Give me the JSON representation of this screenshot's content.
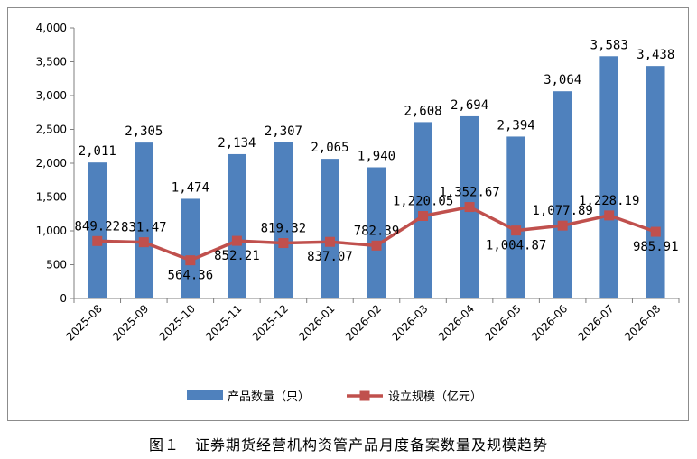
{
  "caption": "图１　证券期货经营机构资管产品月度备案数量及规模趋势",
  "colors": {
    "bar": "#4f81bd",
    "line": "#c0504d",
    "axis": "#7f7f7f",
    "grid": "#d9d9d9"
  },
  "chart_data": {
    "type": "bar",
    "title": "",
    "xlabel": "",
    "ylabel": "",
    "ylim": [
      0,
      4000
    ],
    "yticks": [
      0,
      500,
      1000,
      1500,
      2000,
      2500,
      3000,
      3500,
      4000
    ],
    "ytick_labels": [
      "0",
      "500",
      "1,000",
      "1,500",
      "2,000",
      "2,500",
      "3,000",
      "3,500",
      "4,000"
    ],
    "grid": false,
    "legend_position": "bottom",
    "categories": [
      "2025-08",
      "2025-09",
      "2025-10",
      "2025-11",
      "2025-12",
      "2026-01",
      "2026-02",
      "2026-03",
      "2026-04",
      "2026-05",
      "2026-06",
      "2026-07",
      "2026-08"
    ],
    "series": [
      {
        "name": "产品数量（只）",
        "kind": "bar",
        "values": [
          2011,
          2305,
          1474,
          2134,
          2307,
          2065,
          1940,
          2608,
          2694,
          2394,
          3064,
          3583,
          3438
        ],
        "labels": [
          "2,011",
          "2,305",
          "1,474",
          "2,134",
          "2,307",
          "2,065",
          "1,940",
          "2,608",
          "2,694",
          "2,394",
          "3,064",
          "3,583",
          "3,438"
        ]
      },
      {
        "name": "设立规模（亿元）",
        "kind": "line",
        "values": [
          849.22,
          831.47,
          564.36,
          852.21,
          819.32,
          837.07,
          782.39,
          1220.05,
          1352.67,
          1004.87,
          1077.89,
          1228.19,
          985.91
        ],
        "labels": [
          "849.22",
          "831.47",
          "564.36",
          "852.21",
          "819.32",
          "837.07",
          "782.39",
          "1,220.05",
          "1,352.67",
          "1,004.87",
          "1,077.89",
          "1,228.19",
          "985.91"
        ]
      }
    ]
  }
}
